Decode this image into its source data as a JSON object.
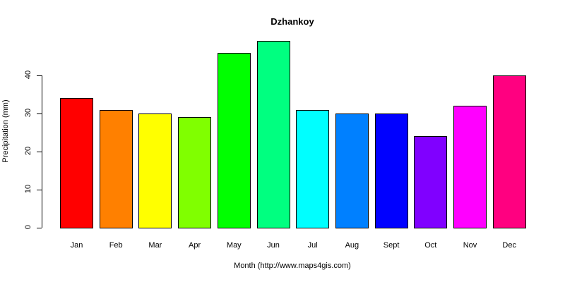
{
  "chart_data": {
    "type": "bar",
    "title": "Dzhankoy",
    "xlabel": "Month (http://www.maps4gis.com)",
    "ylabel": "Precipitation (mm)",
    "categories": [
      "Jan",
      "Feb",
      "Mar",
      "Apr",
      "May",
      "Jun",
      "Jul",
      "Aug",
      "Sept",
      "Oct",
      "Nov",
      "Dec"
    ],
    "values": [
      34,
      31,
      30,
      29,
      46,
      49,
      31,
      30,
      30,
      24,
      32,
      40
    ],
    "colors": [
      "#FF0000",
      "#FF8000",
      "#FFFF00",
      "#80FF00",
      "#00FF00",
      "#00FF80",
      "#00FFFF",
      "#0080FF",
      "#0000FF",
      "#8000FF",
      "#FF00FF",
      "#FF0080"
    ],
    "yticks": [
      0,
      10,
      20,
      30,
      40
    ],
    "ylim": [
      0,
      49
    ],
    "grid": false,
    "legend": null
  }
}
